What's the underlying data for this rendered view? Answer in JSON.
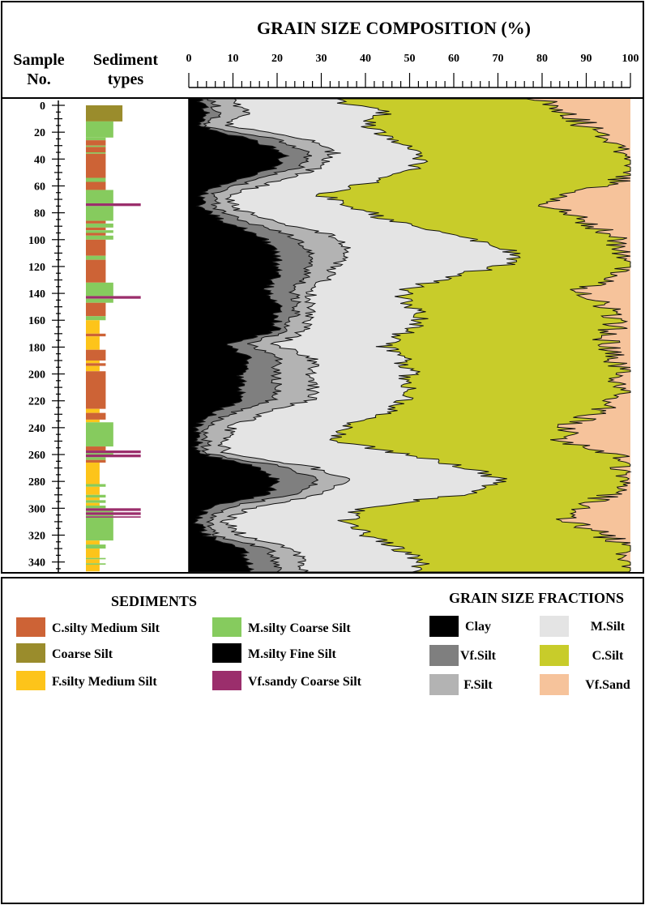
{
  "chart_data": {
    "type": "area",
    "title": "GRAIN SIZE COMPOSITION (%)",
    "depth_column_label": [
      "Sample",
      "No."
    ],
    "sediment_column_label": [
      "Sediment",
      "types"
    ],
    "x_ticks": [
      "0",
      "10",
      "20",
      "30",
      "40",
      "50",
      "60",
      "70",
      "80",
      "90",
      "100"
    ],
    "xlim": [
      0,
      100
    ],
    "y_ticks": [
      "0",
      "20",
      "40",
      "60",
      "80",
      "100",
      "120",
      "140",
      "160",
      "180",
      "200",
      "220",
      "240",
      "260",
      "280",
      "300",
      "320",
      "340"
    ],
    "ylim": [
      0,
      347
    ],
    "fraction_colors": {
      "Clay": "#000000",
      "Vf.Silt": "#7f7f7f",
      "F.Silt": "#b3b3b3",
      "M.Silt": "#e4e4e4",
      "C.Silt": "#c8cc2a",
      "Vf.Sand": "#f6c39b"
    },
    "cumulative_boundaries": {
      "depth": [
        0,
        10,
        20,
        30,
        40,
        50,
        60,
        70,
        80,
        90,
        100,
        110,
        120,
        130,
        140,
        150,
        160,
        170,
        180,
        190,
        200,
        210,
        220,
        230,
        240,
        250,
        260,
        270,
        280,
        290,
        300,
        310,
        320,
        330,
        340,
        347
      ],
      "upper_clay": [
        2,
        4,
        2,
        14,
        22,
        20,
        10,
        3,
        3,
        8,
        16,
        20,
        20,
        20,
        18,
        20,
        20,
        20,
        8,
        14,
        12,
        12,
        12,
        6,
        2,
        2,
        2,
        16,
        20,
        18,
        4,
        2,
        4,
        12,
        14,
        14
      ],
      "upper_vfsilt": [
        5,
        7,
        4,
        20,
        27,
        25,
        14,
        6,
        6,
        13,
        23,
        27,
        27,
        27,
        24,
        24,
        24,
        22,
        14,
        20,
        20,
        20,
        20,
        10,
        4,
        4,
        4,
        22,
        30,
        24,
        8,
        4,
        6,
        18,
        20,
        20
      ],
      "upper_fsilt": [
        10,
        13,
        9,
        27,
        33,
        30,
        20,
        10,
        10,
        20,
        32,
        36,
        34,
        32,
        28,
        27,
        28,
        26,
        20,
        28,
        28,
        28,
        28,
        18,
        10,
        8,
        8,
        28,
        36,
        30,
        14,
        8,
        12,
        24,
        26,
        26
      ],
      "upper_msilt": [
        32,
        44,
        40,
        46,
        53,
        52,
        42,
        30,
        38,
        46,
        60,
        72,
        74,
        60,
        48,
        50,
        52,
        50,
        44,
        48,
        50,
        50,
        50,
        44,
        36,
        32,
        48,
        62,
        72,
        62,
        38,
        36,
        40,
        48,
        52,
        52
      ],
      "upper_csilt": [
        80,
        86,
        90,
        96,
        100,
        100,
        98,
        84,
        82,
        90,
        96,
        98,
        100,
        98,
        88,
        94,
        96,
        96,
        94,
        96,
        98,
        98,
        96,
        92,
        86,
        84,
        96,
        98,
        100,
        96,
        88,
        86,
        94,
        100,
        100,
        100
      ]
    },
    "sediment_colors": {
      "C.silty Medium Silt": "#cd6336",
      "Coarse Silt": "#9a8c2c",
      "F.silty Medium Silt": "#fdc41a",
      "M.silty Coarse Silt": "#86cb5e",
      "M.silty Fine Silt": "#000000",
      "Vf.sandy Coarse Silt": "#9b2e6c"
    },
    "sediment_layers": [
      {
        "from": 0,
        "to": 12,
        "type": "Coarse Silt",
        "width": 0.48
      },
      {
        "from": 12,
        "to": 24,
        "type": "M.silty Coarse Silt",
        "width": 0.36
      },
      {
        "from": 24,
        "to": 26,
        "type": "M.silty Coarse Silt",
        "width": 0.26
      },
      {
        "from": 26,
        "to": 30,
        "type": "C.silty Medium Silt",
        "width": 0.26
      },
      {
        "from": 30,
        "to": 31,
        "type": "M.silty Coarse Silt",
        "width": 0.26
      },
      {
        "from": 31,
        "to": 35,
        "type": "C.silty Medium Silt",
        "width": 0.26
      },
      {
        "from": 35,
        "to": 36,
        "type": "M.silty Coarse Silt",
        "width": 0.26
      },
      {
        "from": 36,
        "to": 54,
        "type": "C.silty Medium Silt",
        "width": 0.26
      },
      {
        "from": 54,
        "to": 57,
        "type": "M.silty Coarse Silt",
        "width": 0.26
      },
      {
        "from": 57,
        "to": 63,
        "type": "C.silty Medium Silt",
        "width": 0.26
      },
      {
        "from": 63,
        "to": 73,
        "type": "M.silty Coarse Silt",
        "width": 0.36
      },
      {
        "from": 73,
        "to": 75,
        "type": "Vf.sandy Coarse Silt",
        "width": 0.72
      },
      {
        "from": 75,
        "to": 86,
        "type": "M.silty Coarse Silt",
        "width": 0.36
      },
      {
        "from": 86,
        "to": 88,
        "type": "C.silty Medium Silt",
        "width": 0.26
      },
      {
        "from": 88,
        "to": 91,
        "type": "M.silty Coarse Silt",
        "width": 0.36
      },
      {
        "from": 91,
        "to": 93,
        "type": "C.silty Medium Silt",
        "width": 0.26
      },
      {
        "from": 93,
        "to": 95,
        "type": "M.silty Coarse Silt",
        "width": 0.36
      },
      {
        "from": 95,
        "to": 97,
        "type": "C.silty Medium Silt",
        "width": 0.26
      },
      {
        "from": 97,
        "to": 100,
        "type": "M.silty Coarse Silt",
        "width": 0.36
      },
      {
        "from": 100,
        "to": 112,
        "type": "C.silty Medium Silt",
        "width": 0.26
      },
      {
        "from": 112,
        "to": 115,
        "type": "M.silty Coarse Silt",
        "width": 0.26
      },
      {
        "from": 115,
        "to": 132,
        "type": "C.silty Medium Silt",
        "width": 0.26
      },
      {
        "from": 132,
        "to": 142,
        "type": "M.silty Coarse Silt",
        "width": 0.36
      },
      {
        "from": 142,
        "to": 144,
        "type": "Vf.sandy Coarse Silt",
        "width": 0.72
      },
      {
        "from": 144,
        "to": 147,
        "type": "M.silty Coarse Silt",
        "width": 0.36
      },
      {
        "from": 147,
        "to": 157,
        "type": "C.silty Medium Silt",
        "width": 0.26
      },
      {
        "from": 157,
        "to": 160,
        "type": "M.silty Coarse Silt",
        "width": 0.26
      },
      {
        "from": 160,
        "to": 170,
        "type": "F.silty Medium Silt",
        "width": 0.18
      },
      {
        "from": 170,
        "to": 172,
        "type": "C.silty Medium Silt",
        "width": 0.26
      },
      {
        "from": 172,
        "to": 182,
        "type": "F.silty Medium Silt",
        "width": 0.18
      },
      {
        "from": 182,
        "to": 190,
        "type": "C.silty Medium Silt",
        "width": 0.26
      },
      {
        "from": 190,
        "to": 192,
        "type": "F.silty Medium Silt",
        "width": 0.18
      },
      {
        "from": 192,
        "to": 194,
        "type": "C.silty Medium Silt",
        "width": 0.26
      },
      {
        "from": 194,
        "to": 198,
        "type": "F.silty Medium Silt",
        "width": 0.18
      },
      {
        "from": 198,
        "to": 226,
        "type": "C.silty Medium Silt",
        "width": 0.26
      },
      {
        "from": 226,
        "to": 229,
        "type": "F.silty Medium Silt",
        "width": 0.18
      },
      {
        "from": 229,
        "to": 234,
        "type": "C.silty Medium Silt",
        "width": 0.26
      },
      {
        "from": 234,
        "to": 236,
        "type": "F.silty Medium Silt",
        "width": 0.18
      },
      {
        "from": 236,
        "to": 254,
        "type": "M.silty Coarse Silt",
        "width": 0.36
      },
      {
        "from": 254,
        "to": 257,
        "type": "C.silty Medium Silt",
        "width": 0.26
      },
      {
        "from": 257,
        "to": 259,
        "type": "Vf.sandy Coarse Silt",
        "width": 0.72
      },
      {
        "from": 259,
        "to": 260,
        "type": "M.silty Coarse Silt",
        "width": 0.36
      },
      {
        "from": 260,
        "to": 262,
        "type": "Vf.sandy Coarse Silt",
        "width": 0.72
      },
      {
        "from": 262,
        "to": 264,
        "type": "M.silty Coarse Silt",
        "width": 0.26
      },
      {
        "from": 264,
        "to": 266,
        "type": "C.silty Medium Silt",
        "width": 0.26
      },
      {
        "from": 266,
        "to": 282,
        "type": "F.silty Medium Silt",
        "width": 0.18
      },
      {
        "from": 282,
        "to": 284,
        "type": "M.silty Coarse Silt",
        "width": 0.26
      },
      {
        "from": 284,
        "to": 290,
        "type": "F.silty Medium Silt",
        "width": 0.18
      },
      {
        "from": 290,
        "to": 292,
        "type": "M.silty Coarse Silt",
        "width": 0.26
      },
      {
        "from": 292,
        "to": 294,
        "type": "F.silty Medium Silt",
        "width": 0.18
      },
      {
        "from": 294,
        "to": 296,
        "type": "M.silty Coarse Silt",
        "width": 0.26
      },
      {
        "from": 296,
        "to": 298,
        "type": "F.silty Medium Silt",
        "width": 0.18
      },
      {
        "from": 298,
        "to": 300,
        "type": "M.silty Coarse Silt",
        "width": 0.26
      },
      {
        "from": 300,
        "to": 302,
        "type": "Vf.sandy Coarse Silt",
        "width": 0.72
      },
      {
        "from": 302,
        "to": 303,
        "type": "M.silty Coarse Silt",
        "width": 0.36
      },
      {
        "from": 303,
        "to": 305,
        "type": "Vf.sandy Coarse Silt",
        "width": 0.72
      },
      {
        "from": 305,
        "to": 306,
        "type": "M.silty Coarse Silt",
        "width": 0.36
      },
      {
        "from": 306,
        "to": 307,
        "type": "Vf.sandy Coarse Silt",
        "width": 0.72
      },
      {
        "from": 307,
        "to": 324,
        "type": "M.silty Coarse Silt",
        "width": 0.36
      },
      {
        "from": 324,
        "to": 327,
        "type": "F.silty Medium Silt",
        "width": 0.18
      },
      {
        "from": 327,
        "to": 330,
        "type": "M.silty Coarse Silt",
        "width": 0.26
      },
      {
        "from": 330,
        "to": 337,
        "type": "F.silty Medium Silt",
        "width": 0.18
      },
      {
        "from": 337,
        "to": 338,
        "type": "M.silty Coarse Silt",
        "width": 0.26
      },
      {
        "from": 338,
        "to": 341,
        "type": "F.silty Medium Silt",
        "width": 0.18
      },
      {
        "from": 341,
        "to": 342,
        "type": "M.silty Coarse Silt",
        "width": 0.26
      },
      {
        "from": 342,
        "to": 347,
        "type": "F.silty Medium Silt",
        "width": 0.18
      }
    ]
  },
  "legend": {
    "sediments_title": "SEDIMENTS",
    "sediments": [
      {
        "label": "C.silty Medium Silt",
        "color": "#cd6336"
      },
      {
        "label": "Coarse Silt",
        "color": "#9a8c2c"
      },
      {
        "label": "F.silty Medium Silt",
        "color": "#fdc41a"
      },
      {
        "label": "M.silty Coarse Silt",
        "color": "#86cb5e"
      },
      {
        "label": "M.silty Fine Silt",
        "color": "#000000"
      },
      {
        "label": "Vf.sandy Coarse Silt",
        "color": "#9b2e6c"
      }
    ],
    "fractions_title": "GRAIN SIZE FRACTIONS",
    "fractions": [
      {
        "label": "Clay",
        "color": "#000000"
      },
      {
        "label": "Vf.Silt",
        "color": "#7f7f7f"
      },
      {
        "label": "F.Silt",
        "color": "#b3b3b3"
      },
      {
        "label": "M.Silt",
        "color": "#e4e4e4"
      },
      {
        "label": "C.Silt",
        "color": "#c8cc2a"
      },
      {
        "label": "Vf.Sand",
        "color": "#f6c39b"
      }
    ]
  }
}
